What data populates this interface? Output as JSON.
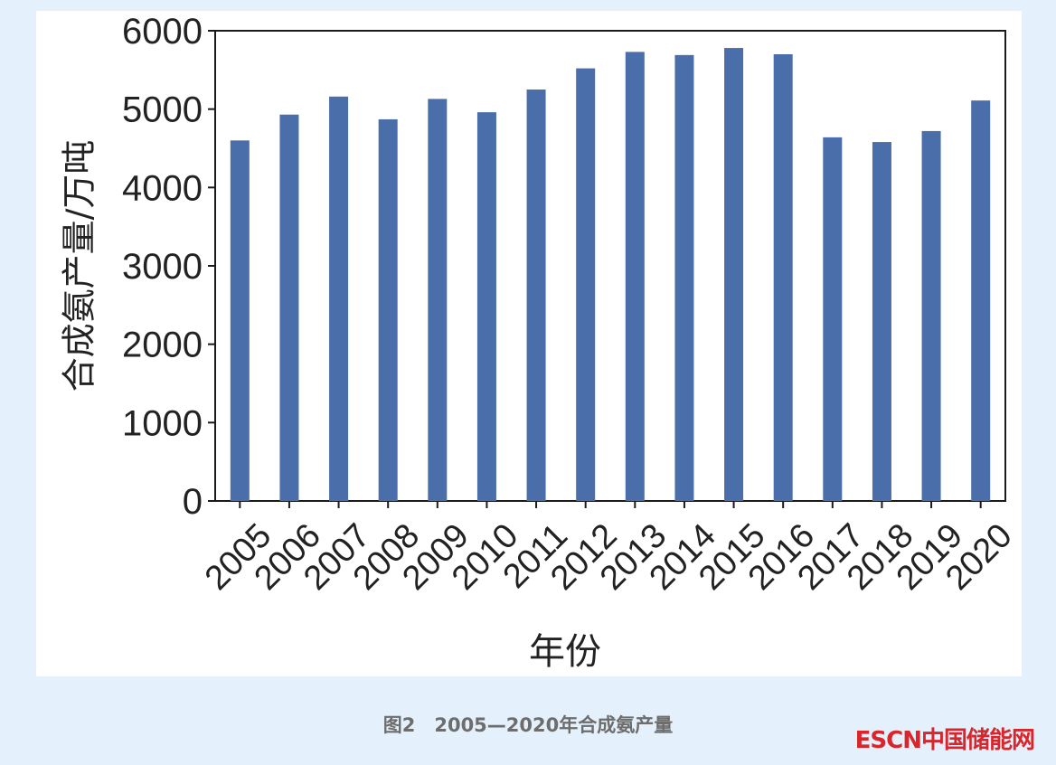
{
  "caption": "图2　2005—2020年合成氨产量",
  "watermark": "ESCN中国储能网",
  "colors": {
    "bar": "#4a6ea9",
    "panel": "#ffffff",
    "background": "#e4f0fb"
  },
  "chart_data": {
    "type": "bar",
    "title": "",
    "xlabel": "年份",
    "ylabel": "合成氨产量/万吨",
    "ylim": [
      0,
      6000
    ],
    "yticks": [
      0,
      1000,
      2000,
      3000,
      4000,
      5000,
      6000
    ],
    "grid": false,
    "categories": [
      "2005",
      "2006",
      "2007",
      "2008",
      "2009",
      "2010",
      "2011",
      "2012",
      "2013",
      "2014",
      "2015",
      "2016",
      "2017",
      "2018",
      "2019",
      "2020"
    ],
    "values": [
      4600,
      4930,
      5160,
      4870,
      5130,
      4960,
      5250,
      5520,
      5730,
      5690,
      5780,
      5700,
      4640,
      4580,
      4720,
      5110
    ]
  }
}
